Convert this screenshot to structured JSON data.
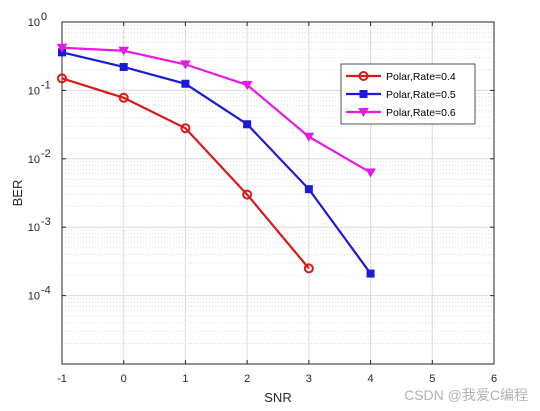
{
  "chart_data": {
    "type": "line",
    "xlabel": "SNR",
    "ylabel": "BER",
    "xlim": [
      -1,
      6
    ],
    "ylim": [
      1e-05,
      1
    ],
    "yscale": "log",
    "xticks": [
      "-1",
      "0",
      "1",
      "2",
      "3",
      "4",
      "5",
      "6"
    ],
    "yticks": [
      {
        "base": "10",
        "exp": "0",
        "value": 1
      },
      {
        "base": "10",
        "exp": "-1",
        "value": 0.1
      },
      {
        "base": "10",
        "exp": "-2",
        "value": 0.01
      },
      {
        "base": "10",
        "exp": "-3",
        "value": 0.001
      },
      {
        "base": "10",
        "exp": "-4",
        "value": 0.0001
      }
    ],
    "grid": true,
    "minor_grid": true,
    "legend_position": "top-right",
    "series": [
      {
        "name": "Polar,Rate=0.4",
        "color": "#d91a1a",
        "marker": "circle",
        "x": [
          -1,
          0,
          1,
          2,
          3
        ],
        "y": [
          0.15,
          0.078,
          0.028,
          0.003,
          0.00025
        ]
      },
      {
        "name": "Polar,Rate=0.5",
        "color": "#1a1ad9",
        "marker": "square",
        "x": [
          -1,
          0,
          1,
          2,
          3,
          4
        ],
        "y": [
          0.36,
          0.22,
          0.125,
          0.032,
          0.0036,
          0.00021
        ]
      },
      {
        "name": "Polar,Rate=0.6",
        "color": "#e61ae6",
        "marker": "triangle-down",
        "x": [
          -1,
          0,
          1,
          2,
          3,
          4
        ],
        "y": [
          0.42,
          0.38,
          0.24,
          0.12,
          0.021,
          0.0063
        ]
      }
    ]
  },
  "watermark": "CSDN @我爱C编程"
}
